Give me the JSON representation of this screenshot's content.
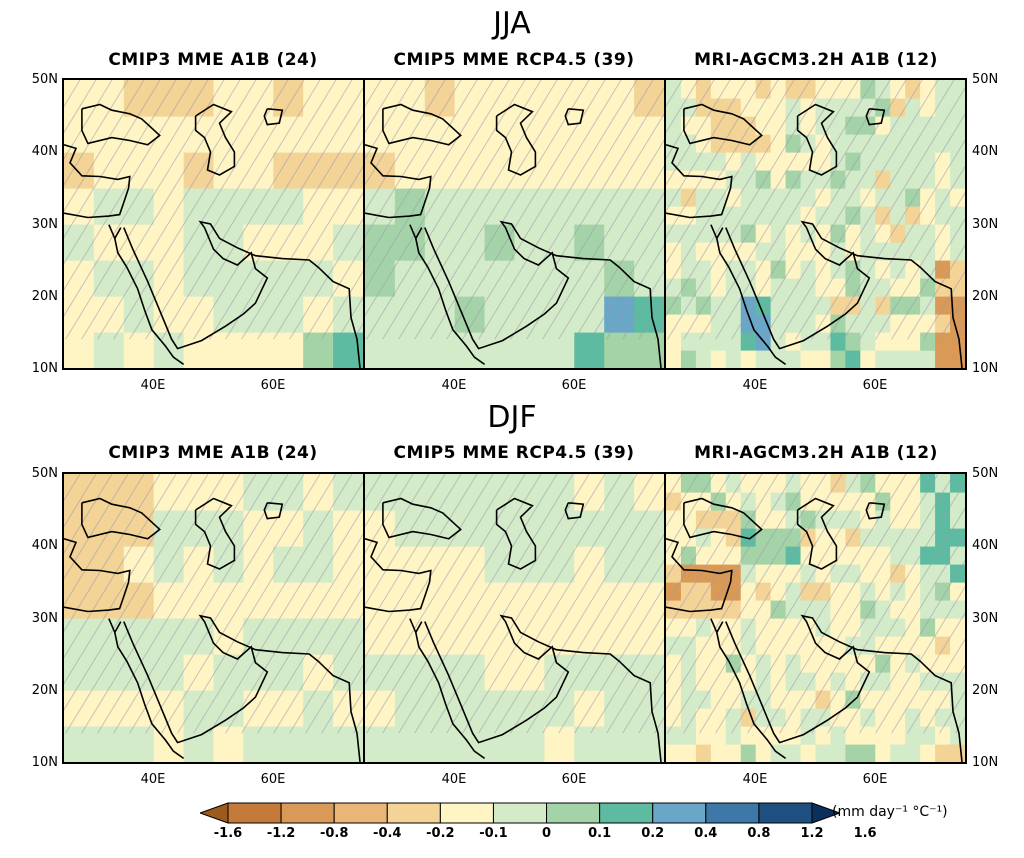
{
  "rows": [
    {
      "season": "JJA",
      "panels": [
        {
          "title": "CMIP3 MME A1B (24)",
          "style": "coarse_dry"
        },
        {
          "title": "CMIP5 MME RCP4.5 (39)",
          "style": "coarse_wet"
        },
        {
          "title": "MRI-AGCM3.2H A1B (12)",
          "style": "fine"
        }
      ]
    },
    {
      "season": "DJF",
      "panels": [
        {
          "title": "CMIP3 MME A1B (24)",
          "style": "coarse_dry"
        },
        {
          "title": "CMIP5 MME RCP4.5 (39)",
          "style": "coarse_mixed"
        },
        {
          "title": "MRI-AGCM3.2H A1B (12)",
          "style": "fine"
        }
      ]
    }
  ],
  "axes": {
    "lat_ticks": [
      "50N",
      "40N",
      "30N",
      "20N",
      "10N"
    ],
    "lon_ticks": [
      "40E",
      "60E"
    ]
  },
  "colorbar": {
    "labels": [
      "-1.6",
      "-1.2",
      "-0.8",
      "-0.4",
      "-0.2",
      "-0.1",
      "0",
      "0.1",
      "0.2",
      "0.4",
      "0.8",
      "1.2",
      "1.6"
    ],
    "colors": [
      "#9c5a1d",
      "#c47a38",
      "#d99a58",
      "#eab677",
      "#f3d496",
      "#fff4c4",
      "#d3ebc9",
      "#a4d3a8",
      "#5cbba0",
      "#6aa6c8",
      "#3d78a8",
      "#1e4f80",
      "#0d2f5c"
    ],
    "units": "(mm day⁻¹ °C⁻¹)"
  }
}
